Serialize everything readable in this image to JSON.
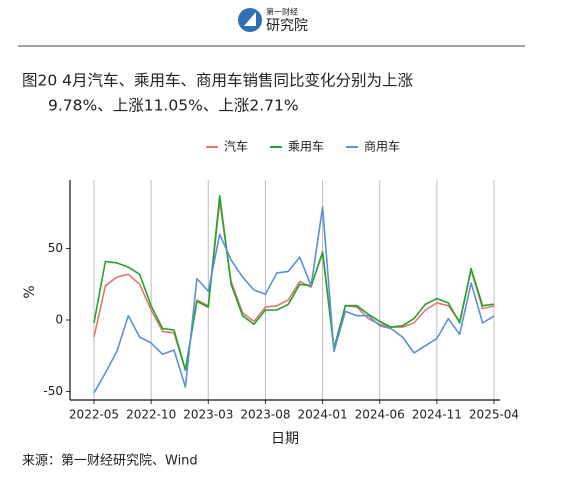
{
  "header": {
    "logo_top": "第一财经",
    "logo_main": "研究院"
  },
  "chart_data": {
    "type": "line",
    "title": "图20 4月汽车、乘用车、商用车销售同比变化分别为上涨",
    "subtitle": "9.78%、上涨11.05%、上涨2.71%",
    "xlabel": "日期",
    "ylabel": "%",
    "categories": [
      "2022-05",
      null,
      null,
      null,
      null,
      "2022-10",
      null,
      null,
      null,
      null,
      "2023-03",
      null,
      null,
      null,
      null,
      "2023-08",
      null,
      null,
      null,
      null,
      "2024-01",
      null,
      null,
      null,
      null,
      "2024-06",
      null,
      null,
      null,
      null,
      "2024-11",
      null,
      null,
      null,
      null,
      "2025-04"
    ],
    "series": [
      {
        "name": "汽车",
        "color": "#e8766b",
        "values": [
          -12,
          24,
          30,
          32,
          25,
          7,
          -8,
          -9,
          -35,
          14,
          10,
          83,
          27,
          5,
          -1,
          9,
          10,
          14,
          27,
          23,
          48,
          -20,
          10,
          9,
          1,
          -3,
          -5,
          -5,
          -2,
          7,
          12,
          10,
          -1,
          35,
          8,
          9.78
        ]
      },
      {
        "name": "乘用车",
        "color": "#22a52f",
        "values": [
          -2,
          41,
          40,
          37,
          32,
          10,
          -6,
          -7,
          -35,
          13,
          9,
          87,
          25,
          3,
          -3,
          7,
          7,
          11,
          25,
          24,
          47,
          -20,
          10,
          10,
          4,
          -1,
          -5,
          -4,
          1,
          11,
          15,
          12,
          -2,
          36,
          10,
          11.05
        ]
      },
      {
        "name": "商用车",
        "color": "#5b90dc",
        "values": [
          -51,
          -37,
          -22,
          3,
          -12,
          -16,
          -24,
          -21,
          -47,
          29,
          20,
          60,
          42,
          30,
          21,
          18,
          33,
          34,
          44,
          24,
          79,
          -22,
          6,
          3,
          3,
          -4,
          -6,
          -12,
          -23,
          -18,
          -13,
          1,
          -10,
          26,
          -2,
          2.71
        ]
      }
    ],
    "ylim": [
      -56,
      98
    ],
    "yticks": [
      -50,
      0,
      50
    ],
    "grid": true,
    "legend": "top"
  },
  "source": "来源：第一财经研究院、Wind"
}
